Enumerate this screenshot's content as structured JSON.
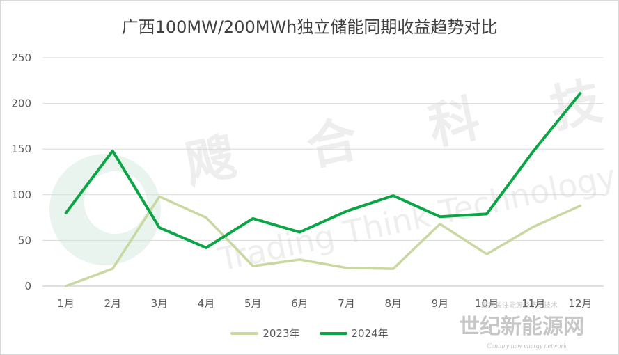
{
  "chart_data": {
    "type": "line",
    "title": "广西100MW/200MWh独立储能同期收益趋势对比",
    "categories": [
      "1月",
      "2月",
      "3月",
      "4月",
      "5月",
      "6月",
      "7月",
      "8月",
      "9月",
      "10月",
      "11月",
      "12月"
    ],
    "series": [
      {
        "name": "2023年",
        "color": "#c9d8a1",
        "values": [
          0,
          19,
          98,
          75,
          22,
          29,
          20,
          19,
          68,
          35,
          65,
          88
        ]
      },
      {
        "name": "2024年",
        "color": "#0aa544",
        "values": [
          80,
          148,
          64,
          42,
          74,
          59,
          82,
          99,
          76,
          79,
          148,
          211
        ]
      }
    ],
    "ylim": [
      0,
      250
    ],
    "yticks": [
      0,
      50,
      100,
      150,
      200,
      250
    ],
    "grid": true,
    "legend_position": "bottom"
  },
  "watermark": {
    "chars": [
      "飕",
      "合",
      "科",
      "技"
    ],
    "text": "Trading Think Technology"
  },
  "corner_logo": {
    "title": "世纪新能源网",
    "subtitle": "Century new energy network",
    "small_text": "国网关注能源经济与技术"
  }
}
